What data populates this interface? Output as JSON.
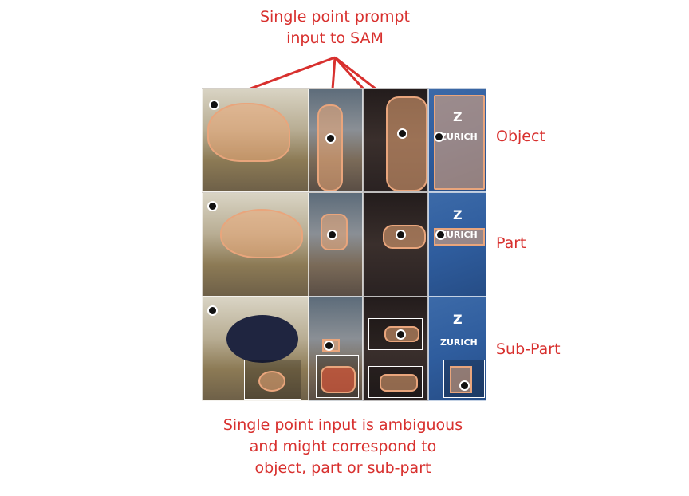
{
  "top_caption": [
    "Single point prompt",
    "input to SAM"
  ],
  "row_labels": {
    "object": "Object",
    "part": "Part",
    "subpart": "Sub-Part"
  },
  "bottom_caption": [
    "Single point input is ambiguous",
    "and might correspond to",
    "object, part or sub-part"
  ],
  "logo": {
    "letter": "Z",
    "word": "ZURICH"
  },
  "colors": {
    "annotation": "#d8302e",
    "mask": "#ecaa78",
    "logo_blue": "#2f5d9e"
  }
}
